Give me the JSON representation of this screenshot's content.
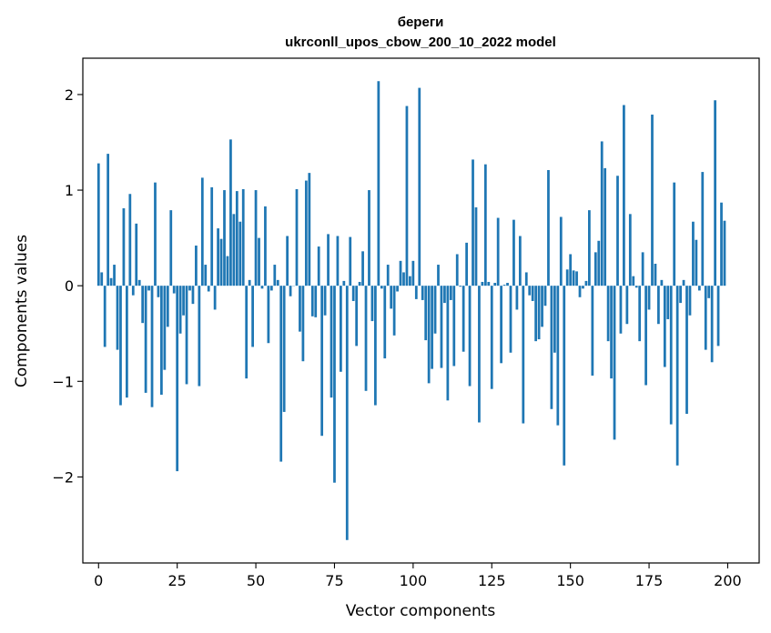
{
  "chart_data": {
    "type": "bar",
    "title": "береги",
    "subtitle": "ukrconll_upos_cbow_200_10_2022 model",
    "xlabel": "Vector components",
    "ylabel": "Components values",
    "xlim": [
      -5,
      210
    ],
    "ylim": [
      -2.9,
      2.38
    ],
    "xticks": [
      0,
      25,
      50,
      75,
      100,
      125,
      150,
      175,
      200
    ],
    "yticks": [
      -2,
      -1,
      0,
      1,
      2
    ],
    "ytick_labels": [
      "−2",
      "−1",
      "0",
      "1",
      "2"
    ],
    "bar_color": "#1f77b4",
    "values": [
      1.28,
      0.14,
      -0.64,
      1.38,
      0.08,
      0.22,
      -0.67,
      -1.25,
      0.81,
      -1.17,
      0.96,
      -0.1,
      0.65,
      0.06,
      -0.39,
      -1.12,
      -0.05,
      -1.27,
      1.08,
      -0.12,
      -1.14,
      -0.88,
      -0.43,
      0.79,
      -0.08,
      -1.94,
      -0.5,
      -0.31,
      -1.03,
      -0.05,
      -0.19,
      0.42,
      -1.05,
      1.13,
      0.22,
      -0.06,
      1.03,
      -0.25,
      0.6,
      0.49,
      1.0,
      0.31,
      1.53,
      0.75,
      0.99,
      0.67,
      1.01,
      -0.97,
      0.06,
      -0.64,
      1.0,
      0.5,
      -0.03,
      0.83,
      -0.6,
      -0.05,
      0.22,
      0.06,
      -1.84,
      -1.32,
      0.52,
      -0.11,
      0.0,
      1.01,
      -0.48,
      -0.79,
      1.1,
      1.18,
      -0.32,
      -0.33,
      0.41,
      -1.57,
      -0.31,
      0.54,
      -1.17,
      -2.06,
      0.52,
      -0.9,
      0.05,
      -2.66,
      0.51,
      -0.16,
      -0.63,
      0.04,
      0.36,
      -1.1,
      1.0,
      -0.37,
      -1.25,
      2.14,
      -0.03,
      -0.76,
      0.22,
      -0.24,
      -0.52,
      -0.06,
      0.26,
      0.14,
      1.88,
      0.1,
      0.26,
      -0.14,
      2.07,
      -0.15,
      -0.57,
      -1.02,
      -0.87,
      -0.5,
      0.22,
      -0.86,
      -0.18,
      -1.2,
      -0.15,
      -0.84,
      0.33,
      -0.01,
      -0.69,
      0.45,
      -1.05,
      1.32,
      0.82,
      -1.43,
      0.04,
      1.27,
      0.04,
      -1.08,
      0.03,
      0.71,
      -0.81,
      0.01,
      0.03,
      -0.7,
      0.69,
      -0.25,
      0.52,
      -1.44,
      0.14,
      -0.1,
      -0.16,
      -0.58,
      -0.56,
      -0.43,
      -0.21,
      1.21,
      -1.29,
      -0.7,
      -1.46,
      0.72,
      -1.88,
      0.17,
      0.33,
      0.16,
      0.15,
      -0.12,
      -0.03,
      0.05,
      0.79,
      -0.94,
      0.35,
      0.47,
      1.51,
      1.23,
      -0.58,
      -0.97,
      -1.61,
      1.15,
      -0.5,
      1.89,
      -0.4,
      0.75,
      0.1,
      -0.02,
      -0.58,
      0.35,
      -1.04,
      -0.25,
      1.79,
      0.23,
      -0.4,
      0.06,
      -0.85,
      -0.35,
      -1.45,
      1.08,
      -1.88,
      -0.18,
      0.06,
      -1.34,
      -0.31,
      0.67,
      0.48,
      -0.05,
      1.19,
      -0.67,
      -0.13,
      -0.8,
      1.94,
      -0.63,
      0.87,
      0.68
    ]
  }
}
